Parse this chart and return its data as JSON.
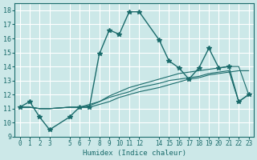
{
  "title": "",
  "xlabel": "Humidex (Indice chaleur)",
  "ylabel": "",
  "bg_color": "#cce8e8",
  "grid_color": "#ffffff",
  "line_color": "#1a6b6b",
  "ylim": [
    9,
    18.5
  ],
  "xlim": [
    -0.5,
    23.5
  ],
  "x_indices": [
    0,
    1,
    2,
    3,
    5,
    6,
    7,
    8,
    9,
    10,
    11,
    12,
    14,
    15,
    16,
    17,
    18,
    19,
    20,
    21,
    22,
    23
  ],
  "series": [
    [
      11.1,
      11.5,
      10.4,
      9.5,
      10.4,
      11.1,
      11.1,
      14.9,
      16.6,
      16.3,
      17.9,
      17.9,
      15.9,
      14.4,
      13.9,
      13.1,
      13.9,
      15.3,
      13.9,
      14.0,
      11.5,
      12.0
    ],
    [
      11.1,
      11.1,
      11.0,
      11.0,
      11.1,
      11.1,
      11.1,
      11.3,
      11.5,
      11.8,
      12.0,
      12.2,
      12.5,
      12.7,
      12.9,
      13.1,
      13.2,
      13.4,
      13.5,
      13.6,
      13.7,
      13.7
    ],
    [
      11.1,
      11.1,
      11.0,
      11.0,
      11.1,
      11.1,
      11.2,
      11.5,
      11.9,
      12.2,
      12.5,
      12.7,
      13.1,
      13.3,
      13.5,
      13.6,
      13.7,
      13.8,
      13.9,
      14.0,
      14.0,
      12.0
    ],
    [
      11.1,
      11.1,
      11.0,
      11.0,
      11.1,
      11.1,
      11.3,
      11.5,
      11.8,
      12.0,
      12.2,
      12.5,
      12.8,
      13.0,
      13.1,
      13.2,
      13.3,
      13.5,
      13.6,
      13.7,
      11.5,
      12.0
    ]
  ],
  "yticks": [
    9,
    10,
    11,
    12,
    13,
    14,
    15,
    16,
    17,
    18
  ]
}
